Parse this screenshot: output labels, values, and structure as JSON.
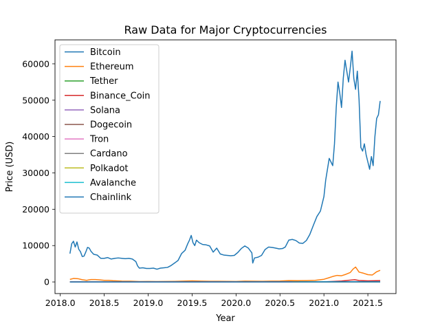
{
  "chart_data": {
    "type": "line",
    "title": "Raw Data for Major Cryptocurrencies",
    "xlabel": "Year",
    "ylabel": "Price (USD)",
    "xlim": [
      2017.94,
      2021.82
    ],
    "ylim": [
      -3200,
      66600
    ],
    "xticks": [
      2018.0,
      2018.5,
      2019.0,
      2019.5,
      2020.0,
      2020.5,
      2021.0,
      2021.5
    ],
    "xtick_labels": [
      "2018.0",
      "2018.5",
      "2019.0",
      "2019.5",
      "2020.0",
      "2020.5",
      "2021.0",
      "2021.5"
    ],
    "yticks": [
      0,
      10000,
      20000,
      30000,
      40000,
      50000,
      60000
    ],
    "ytick_labels": [
      "0",
      "10000",
      "20000",
      "30000",
      "40000",
      "50000",
      "60000"
    ],
    "grid": false,
    "legend_position": "top-left",
    "series": [
      {
        "name": "Bitcoin",
        "color": "#1f77b4",
        "x": [
          2018.11,
          2018.13,
          2018.15,
          2018.17,
          2018.19,
          2018.21,
          2018.23,
          2018.25,
          2018.27,
          2018.29,
          2018.31,
          2018.33,
          2018.35,
          2018.38,
          2018.42,
          2018.46,
          2018.5,
          2018.54,
          2018.58,
          2018.62,
          2018.66,
          2018.7,
          2018.74,
          2018.78,
          2018.82,
          2018.86,
          2018.88,
          2018.9,
          2018.94,
          2018.98,
          2019.02,
          2019.06,
          2019.1,
          2019.14,
          2019.18,
          2019.22,
          2019.26,
          2019.3,
          2019.34,
          2019.38,
          2019.42,
          2019.45,
          2019.47,
          2019.49,
          2019.51,
          2019.53,
          2019.55,
          2019.58,
          2019.62,
          2019.66,
          2019.7,
          2019.74,
          2019.78,
          2019.82,
          2019.86,
          2019.9,
          2019.94,
          2019.98,
          2020.02,
          2020.06,
          2020.1,
          2020.14,
          2020.18,
          2020.19,
          2020.21,
          2020.25,
          2020.29,
          2020.33,
          2020.37,
          2020.41,
          2020.45,
          2020.49,
          2020.53,
          2020.56,
          2020.6,
          2020.64,
          2020.68,
          2020.72,
          2020.76,
          2020.8,
          2020.84,
          2020.88,
          2020.92,
          2020.96,
          2021.0,
          2021.02,
          2021.04,
          2021.06,
          2021.08,
          2021.1,
          2021.12,
          2021.14,
          2021.16,
          2021.18,
          2021.2,
          2021.22,
          2021.24,
          2021.26,
          2021.28,
          2021.3,
          2021.32,
          2021.34,
          2021.36,
          2021.38,
          2021.4,
          2021.42,
          2021.44,
          2021.46,
          2021.48,
          2021.5,
          2021.52,
          2021.54,
          2021.56,
          2021.58,
          2021.6,
          2021.62,
          2021.64
        ],
        "values": [
          7800,
          10500,
          11200,
          9600,
          11000,
          9000,
          8300,
          7000,
          7100,
          8200,
          9500,
          9300,
          8400,
          7600,
          7400,
          6500,
          6500,
          6700,
          6300,
          6500,
          6600,
          6500,
          6400,
          6500,
          6300,
          5600,
          4400,
          3800,
          3900,
          3700,
          3700,
          3800,
          3500,
          3800,
          3900,
          4000,
          4500,
          5200,
          5900,
          7800,
          8700,
          10500,
          11500,
          12800,
          10800,
          10000,
          11500,
          10800,
          10300,
          10200,
          9900,
          8200,
          9300,
          7700,
          7400,
          7300,
          7200,
          7300,
          8100,
          9200,
          9900,
          9300,
          8000,
          5200,
          6600,
          6800,
          7300,
          8900,
          9600,
          9500,
          9300,
          9100,
          9200,
          9600,
          11500,
          11700,
          11400,
          10700,
          10600,
          11400,
          13100,
          15600,
          18000,
          19500,
          23500,
          28000,
          31000,
          34000,
          33000,
          32000,
          38000,
          48000,
          55000,
          52000,
          48000,
          56000,
          61000,
          58000,
          55000,
          59000,
          63500,
          56000,
          53000,
          58000,
          50000,
          37000,
          36000,
          38000,
          35000,
          33000,
          31000,
          34500,
          32000,
          40000,
          45000,
          46000,
          49800
        ]
      },
      {
        "name": "Ethereum",
        "color": "#ff7f0e",
        "x": [
          2018.11,
          2018.15,
          2018.2,
          2018.25,
          2018.3,
          2018.35,
          2018.4,
          2018.45,
          2018.5,
          2018.55,
          2018.6,
          2018.7,
          2018.8,
          2018.9,
          2019.0,
          2019.1,
          2019.2,
          2019.3,
          2019.4,
          2019.5,
          2019.6,
          2019.7,
          2019.8,
          2019.9,
          2020.0,
          2020.1,
          2020.2,
          2020.3,
          2020.4,
          2020.5,
          2020.6,
          2020.7,
          2020.8,
          2020.9,
          2021.0,
          2021.05,
          2021.1,
          2021.15,
          2021.2,
          2021.25,
          2021.3,
          2021.33,
          2021.36,
          2021.4,
          2021.45,
          2021.5,
          2021.55,
          2021.6,
          2021.64
        ],
        "values": [
          700,
          950,
          900,
          600,
          450,
          650,
          650,
          550,
          450,
          450,
          350,
          220,
          210,
          110,
          130,
          110,
          130,
          160,
          230,
          300,
          220,
          180,
          180,
          150,
          140,
          220,
          200,
          180,
          220,
          240,
          380,
          350,
          380,
          450,
          730,
          1100,
          1500,
          1800,
          1700,
          2100,
          2600,
          3500,
          4100,
          2700,
          2400,
          2000,
          1900,
          2800,
          3200
        ]
      },
      {
        "name": "Tether",
        "color": "#2ca02c",
        "x": [
          2018.11,
          2021.64
        ],
        "values": [
          1,
          1
        ]
      },
      {
        "name": "Binance_Coin",
        "color": "#d62728",
        "x": [
          2018.11,
          2018.5,
          2019.0,
          2019.5,
          2020.0,
          2020.5,
          2021.0,
          2021.1,
          2021.2,
          2021.3,
          2021.35,
          2021.4,
          2021.5,
          2021.64
        ],
        "values": [
          10,
          12,
          6,
          30,
          15,
          18,
          40,
          130,
          260,
          500,
          600,
          400,
          300,
          380
        ]
      },
      {
        "name": "Solana",
        "color": "#9467bd",
        "x": [
          2020.3,
          2020.8,
          2021.0,
          2021.3,
          2021.5,
          2021.64
        ],
        "values": [
          1,
          2,
          2,
          30,
          30,
          70
        ]
      },
      {
        "name": "Dogecoin",
        "color": "#8c564b",
        "x": [
          2018.11,
          2021.0,
          2021.35,
          2021.64
        ],
        "values": [
          0,
          0,
          0.5,
          0.3
        ]
      },
      {
        "name": "Tron",
        "color": "#e377c2",
        "x": [
          2018.11,
          2021.64
        ],
        "values": [
          0,
          0
        ]
      },
      {
        "name": "Cardano",
        "color": "#7f7f7f",
        "x": [
          2018.11,
          2021.0,
          2021.64
        ],
        "values": [
          1,
          0.2,
          2
        ]
      },
      {
        "name": "Polkadot",
        "color": "#bcbd22",
        "x": [
          2020.64,
          2021.0,
          2021.3,
          2021.64
        ],
        "values": [
          5,
          10,
          40,
          25
        ]
      },
      {
        "name": "Avalanche",
        "color": "#17becf",
        "x": [
          2020.72,
          2021.1,
          2021.64
        ],
        "values": [
          4,
          30,
          45
        ]
      },
      {
        "name": "Chainlink",
        "color": "#1f77b4",
        "x": [
          2018.11,
          2019.5,
          2020.5,
          2021.0,
          2021.35,
          2021.64
        ],
        "values": [
          1,
          3,
          10,
          12,
          45,
          28
        ]
      }
    ]
  }
}
